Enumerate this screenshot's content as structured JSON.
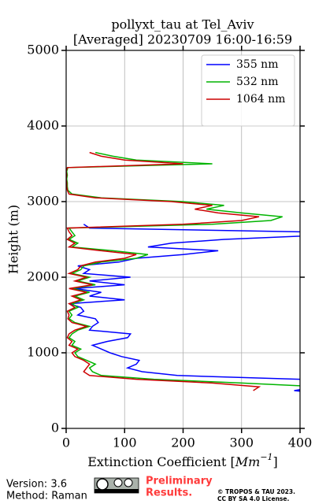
{
  "chart_data": {
    "type": "profile",
    "title": [
      "pollyxt_tau at Tel_Aviv",
      "[Averaged] 20230709 16:00-16:59"
    ],
    "xlabel_parts": [
      "Extinction Coefficient [",
      "Mm",
      "−1",
      "]"
    ],
    "ylabel": "Height (m)",
    "xlim": [
      0,
      400
    ],
    "xticks": [
      0,
      100,
      200,
      300,
      400
    ],
    "ylim": [
      0,
      5000
    ],
    "yticks": [
      0,
      1000,
      2000,
      3000,
      4000,
      5000
    ],
    "grid": true,
    "legend": "upper right",
    "y": [
      450,
      500,
      550,
      600,
      650,
      700,
      750,
      800,
      850,
      900,
      950,
      1000,
      1050,
      1100,
      1150,
      1200,
      1250,
      1300,
      1350,
      1400,
      1450,
      1500,
      1550,
      1600,
      1650,
      1700,
      1750,
      1800,
      1850,
      1900,
      1950,
      2000,
      2050,
      2100,
      2150,
      2200,
      2250,
      2300,
      2350,
      2400,
      2450,
      2500,
      2550,
      2600,
      2650,
      2700,
      2750,
      2800,
      2850,
      2900,
      2950,
      3000,
      3050,
      3100,
      3150,
      3200,
      3250,
      3300,
      3350,
      3400,
      3450,
      3500,
      3550,
      3600,
      3650
    ],
    "series": [
      {
        "name": "355 nm",
        "color": "#0000ff",
        "values": [
          460,
          390,
          430,
          420,
          400,
          190,
          130,
          105,
          120,
          125,
          95,
          75,
          60,
          45,
          70,
          105,
          110,
          40,
          45,
          55,
          50,
          20,
          30,
          25,
          5,
          100,
          40,
          60,
          15,
          100,
          40,
          110,
          30,
          40,
          20,
          90,
          120,
          200,
          260,
          140,
          180,
          270,
          420,
          400,
          40,
          30,
          null,
          null,
          null,
          null,
          null,
          null,
          null,
          null,
          null,
          null,
          null,
          null,
          null,
          null,
          null,
          null,
          null,
          null,
          null
        ]
      },
      {
        "name": "532 nm",
        "color": "#00b400",
        "values": [
          null,
          430,
          440,
          300,
          150,
          60,
          45,
          40,
          50,
          35,
          20,
          15,
          25,
          10,
          15,
          5,
          10,
          20,
          40,
          15,
          5,
          10,
          5,
          20,
          10,
          30,
          15,
          40,
          10,
          50,
          20,
          40,
          10,
          25,
          30,
          60,
          120,
          140,
          80,
          10,
          20,
          5,
          15,
          10,
          5,
          250,
          350,
          370,
          300,
          240,
          270,
          200,
          60,
          10,
          3,
          2,
          2,
          1,
          2,
          1,
          3,
          250,
          120,
          80,
          50
        ]
      },
      {
        "name": "1064 nm",
        "color": "#cc0000",
        "values": [
          null,
          320,
          330,
          250,
          120,
          40,
          30,
          35,
          40,
          30,
          15,
          10,
          20,
          5,
          10,
          2,
          5,
          15,
          35,
          10,
          3,
          5,
          2,
          15,
          5,
          25,
          10,
          35,
          5,
          45,
          15,
          35,
          5,
          20,
          25,
          50,
          100,
          120,
          60,
          5,
          15,
          2,
          10,
          5,
          2,
          200,
          300,
          330,
          260,
          220,
          250,
          180,
          50,
          5,
          2,
          1,
          1,
          0,
          1,
          0,
          2,
          200,
          100,
          60,
          40
        ]
      }
    ]
  },
  "footer": {
    "version": "Version: 3.6",
    "method": "Method: Raman",
    "preliminary": [
      "Preliminary",
      "Results."
    ],
    "copyright": "© TROPOS & TAU 2023.",
    "license": "CC BY SA 4.0 License."
  }
}
